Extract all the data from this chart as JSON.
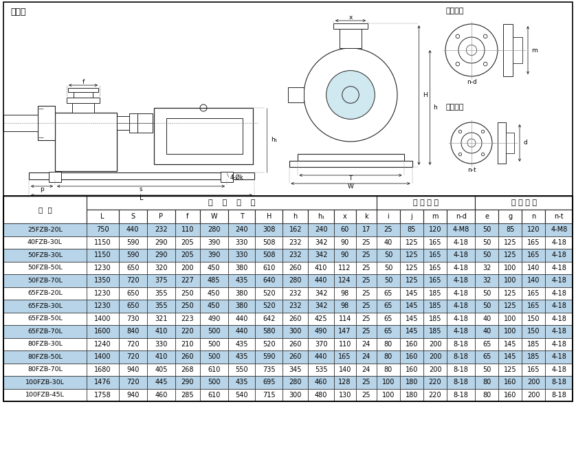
{
  "col_headers": [
    "型  号",
    "L",
    "S",
    "P",
    "f",
    "W",
    "T",
    "H",
    "h",
    "h₁",
    "x",
    "k",
    "i",
    "j",
    "m",
    "n-d",
    "e",
    "g",
    "n",
    "n-t"
  ],
  "rows": [
    [
      "25FZB-20L",
      "750",
      "440",
      "232",
      "110",
      "280",
      "240",
      "308",
      "162",
      "240",
      "60",
      "17",
      "25",
      "85",
      "120",
      "4-M8",
      "50",
      "85",
      "120",
      "4-M8"
    ],
    [
      "40FZB-30L",
      "1150",
      "590",
      "290",
      "205",
      "390",
      "330",
      "508",
      "232",
      "342",
      "90",
      "25",
      "40",
      "125",
      "165",
      "4-18",
      "50",
      "125",
      "165",
      "4-18"
    ],
    [
      "50FZB-30L",
      "1150",
      "590",
      "290",
      "205",
      "390",
      "330",
      "508",
      "232",
      "342",
      "90",
      "25",
      "50",
      "125",
      "165",
      "4-18",
      "50",
      "125",
      "165",
      "4-18"
    ],
    [
      "50FZB-50L",
      "1230",
      "650",
      "320",
      "200",
      "450",
      "380",
      "610",
      "260",
      "410",
      "112",
      "25",
      "50",
      "125",
      "165",
      "4-18",
      "32",
      "100",
      "140",
      "4-18"
    ],
    [
      "50FZB-70L",
      "1350",
      "720",
      "375",
      "227",
      "485",
      "435",
      "640",
      "280",
      "440",
      "124",
      "25",
      "50",
      "125",
      "165",
      "4-18",
      "32",
      "100",
      "140",
      "4-18"
    ],
    [
      "65FZB-20L",
      "1230",
      "650",
      "355",
      "250",
      "450",
      "380",
      "520",
      "232",
      "342",
      "98",
      "25",
      "65",
      "145",
      "185",
      "4-18",
      "50",
      "125",
      "165",
      "4-18"
    ],
    [
      "65FZB-30L",
      "1230",
      "650",
      "355",
      "250",
      "450",
      "380",
      "520",
      "232",
      "342",
      "98",
      "25",
      "65",
      "145",
      "185",
      "4-18",
      "50",
      "125",
      "165",
      "4-18"
    ],
    [
      "65FZB-50L",
      "1400",
      "730",
      "321",
      "223",
      "490",
      "440",
      "642",
      "260",
      "425",
      "114",
      "25",
      "65",
      "145",
      "185",
      "4-18",
      "40",
      "100",
      "150",
      "4-18"
    ],
    [
      "65FZB-70L",
      "1600",
      "840",
      "410",
      "220",
      "500",
      "440",
      "580",
      "300",
      "490",
      "147",
      "25",
      "65",
      "145",
      "185",
      "4-18",
      "40",
      "100",
      "150",
      "4-18"
    ],
    [
      "80FZB-30L",
      "1240",
      "720",
      "330",
      "210",
      "500",
      "435",
      "520",
      "260",
      "370",
      "110",
      "24",
      "80",
      "160",
      "200",
      "8-18",
      "65",
      "145",
      "185",
      "4-18"
    ],
    [
      "80FZB-50L",
      "1400",
      "720",
      "410",
      "260",
      "500",
      "435",
      "590",
      "260",
      "440",
      "165",
      "24",
      "80",
      "160",
      "200",
      "8-18",
      "65",
      "145",
      "185",
      "4-18"
    ],
    [
      "80FZB-70L",
      "1680",
      "940",
      "405",
      "268",
      "610",
      "550",
      "735",
      "345",
      "535",
      "140",
      "24",
      "80",
      "160",
      "200",
      "8-18",
      "50",
      "125",
      "165",
      "4-18"
    ],
    [
      "100FZB-30L",
      "1476",
      "720",
      "445",
      "290",
      "500",
      "435",
      "695",
      "280",
      "460",
      "128",
      "25",
      "100",
      "180",
      "220",
      "8-18",
      "80",
      "160",
      "200",
      "8-18"
    ],
    [
      "100FZB-45L",
      "1758",
      "940",
      "460",
      "285",
      "610",
      "540",
      "715",
      "300",
      "480",
      "130",
      "25",
      "100",
      "180",
      "220",
      "8-18",
      "80",
      "160",
      "200",
      "8-18"
    ]
  ],
  "highlight_rows": [
    0,
    2,
    4,
    6,
    8,
    10,
    12
  ],
  "highlight_color": "#b8d4e8",
  "normal_color": "#ffffff",
  "background_color": "#ffffff",
  "lc": "#222222"
}
